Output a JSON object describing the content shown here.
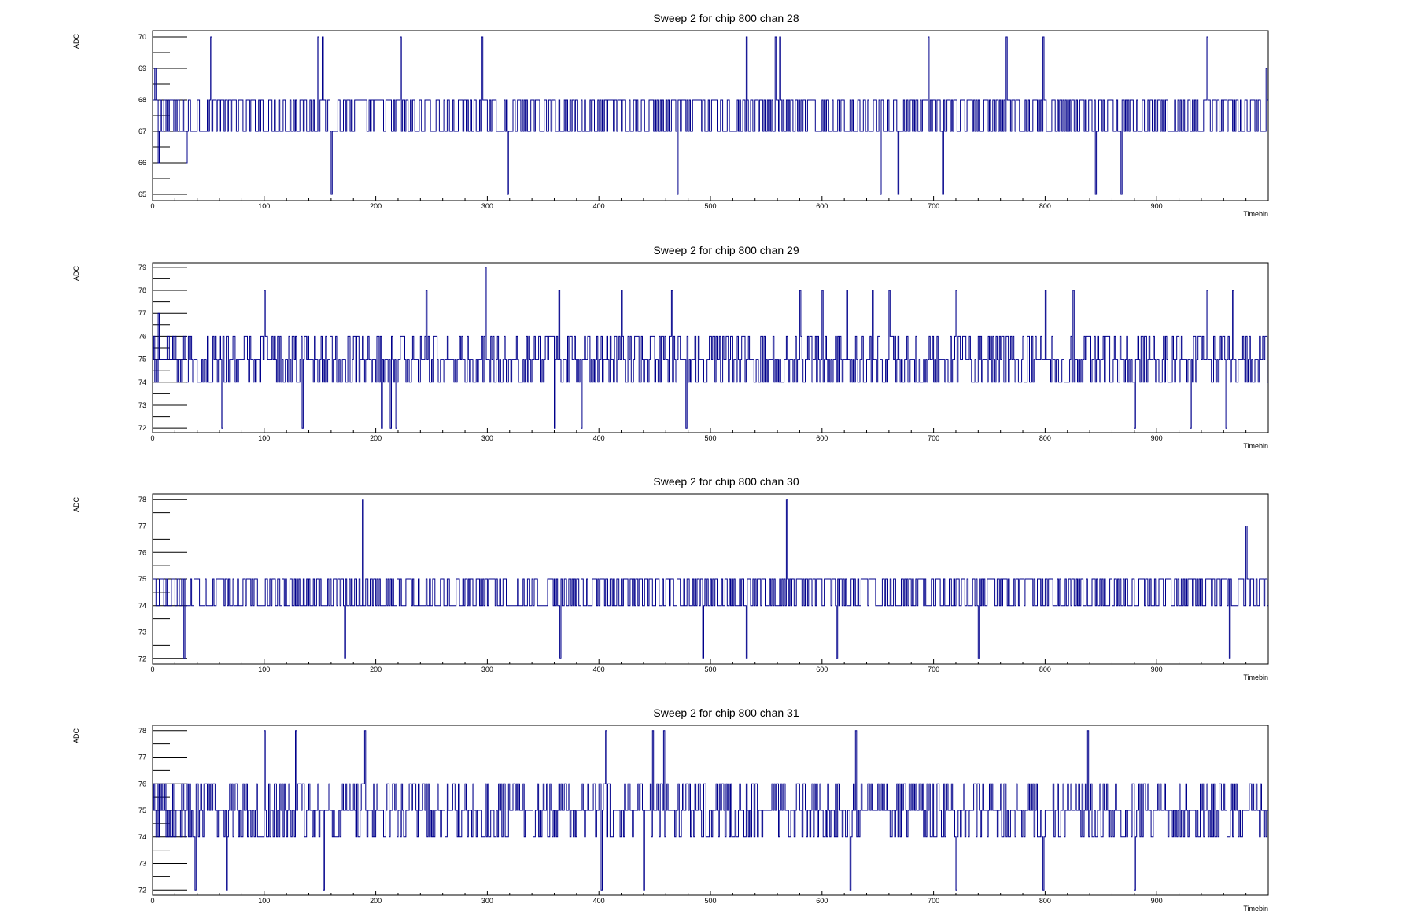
{
  "colors": {
    "series": "#00008b",
    "axis": "#000000",
    "background": "#ffffff"
  },
  "chart_data": [
    {
      "type": "line",
      "title": "Sweep 2 for chip 800 chan 28",
      "xlabel": "Timebin",
      "ylabel": "ADC",
      "xlim": [
        0,
        1000
      ],
      "ylim": [
        64.8,
        70.2
      ],
      "grid": false,
      "legend": "none",
      "xticks": [
        "0",
        "100",
        "200",
        "300",
        "400",
        "500",
        "600",
        "700",
        "800",
        "900"
      ],
      "yticks": [
        "65",
        "66",
        "67",
        "68",
        "69",
        "70"
      ],
      "baseline": 67.5,
      "spread": 0.9,
      "spikes": [
        [
          2,
          69
        ],
        [
          5,
          66
        ],
        [
          18,
          68
        ],
        [
          30,
          66
        ],
        [
          52,
          70
        ],
        [
          148,
          70
        ],
        [
          152,
          70
        ],
        [
          160,
          65
        ],
        [
          222,
          70
        ],
        [
          295,
          70
        ],
        [
          318,
          65
        ],
        [
          470,
          65
        ],
        [
          532,
          70
        ],
        [
          558,
          70
        ],
        [
          562,
          70
        ],
        [
          652,
          65
        ],
        [
          668,
          65
        ],
        [
          695,
          70
        ],
        [
          708,
          65
        ],
        [
          765,
          70
        ],
        [
          798,
          70
        ],
        [
          845,
          65
        ],
        [
          868,
          65
        ],
        [
          945,
          70
        ],
        [
          998,
          69
        ]
      ]
    },
    {
      "type": "line",
      "title": "Sweep 2 for chip 800 chan 29",
      "xlabel": "Timebin",
      "ylabel": "ADC",
      "xlim": [
        0,
        1000
      ],
      "ylim": [
        71.8,
        79.2
      ],
      "grid": false,
      "legend": "none",
      "xticks": [
        "0",
        "100",
        "200",
        "300",
        "400",
        "500",
        "600",
        "700",
        "800",
        "900"
      ],
      "yticks": [
        "72",
        "73",
        "74",
        "75",
        "76",
        "77",
        "78",
        "79"
      ],
      "baseline": 75.0,
      "spread": 1.1,
      "spikes": [
        [
          5,
          77
        ],
        [
          62,
          72
        ],
        [
          100,
          78
        ],
        [
          134,
          72
        ],
        [
          205,
          72
        ],
        [
          213,
          72
        ],
        [
          218,
          72
        ],
        [
          245,
          78
        ],
        [
          298,
          79
        ],
        [
          360,
          72
        ],
        [
          364,
          78
        ],
        [
          384,
          72
        ],
        [
          420,
          78
        ],
        [
          465,
          78
        ],
        [
          478,
          72
        ],
        [
          580,
          78
        ],
        [
          600,
          78
        ],
        [
          622,
          78
        ],
        [
          645,
          78
        ],
        [
          660,
          78
        ],
        [
          720,
          78
        ],
        [
          800,
          78
        ],
        [
          825,
          78
        ],
        [
          880,
          72
        ],
        [
          930,
          72
        ],
        [
          945,
          78
        ],
        [
          962,
          72
        ],
        [
          968,
          78
        ]
      ]
    },
    {
      "type": "line",
      "title": "Sweep 2 for chip 800 chan 30",
      "xlabel": "Timebin",
      "ylabel": "ADC",
      "xlim": [
        0,
        1000
      ],
      "ylim": [
        71.8,
        78.2
      ],
      "grid": false,
      "legend": "none",
      "xticks": [
        "0",
        "100",
        "200",
        "300",
        "400",
        "500",
        "600",
        "700",
        "800",
        "900"
      ],
      "yticks": [
        "72",
        "73",
        "74",
        "75",
        "76",
        "77",
        "78"
      ],
      "baseline": 74.5,
      "spread": 1.0,
      "spikes": [
        [
          28,
          72
        ],
        [
          172,
          72
        ],
        [
          188,
          78
        ],
        [
          365,
          72
        ],
        [
          493,
          72
        ],
        [
          532,
          72
        ],
        [
          568,
          78
        ],
        [
          613,
          72
        ],
        [
          740,
          72
        ],
        [
          965,
          72
        ],
        [
          980,
          77
        ]
      ]
    },
    {
      "type": "line",
      "title": "Sweep 2 for chip 800 chan 31",
      "xlabel": "Timebin",
      "ylabel": "ADC",
      "xlim": [
        0,
        1000
      ],
      "ylim": [
        71.8,
        78.2
      ],
      "grid": false,
      "legend": "none",
      "xticks": [
        "0",
        "100",
        "200",
        "300",
        "400",
        "500",
        "600",
        "700",
        "800",
        "900"
      ],
      "yticks": [
        "72",
        "73",
        "74",
        "75",
        "76",
        "77",
        "78"
      ],
      "baseline": 75.0,
      "spread": 1.1,
      "spikes": [
        [
          38,
          72
        ],
        [
          66,
          72
        ],
        [
          100,
          78
        ],
        [
          128,
          78
        ],
        [
          153,
          72
        ],
        [
          190,
          78
        ],
        [
          402,
          72
        ],
        [
          406,
          78
        ],
        [
          440,
          72
        ],
        [
          448,
          78
        ],
        [
          458,
          78
        ],
        [
          625,
          72
        ],
        [
          630,
          78
        ],
        [
          720,
          72
        ],
        [
          798,
          72
        ],
        [
          838,
          78
        ],
        [
          880,
          72
        ]
      ]
    }
  ]
}
